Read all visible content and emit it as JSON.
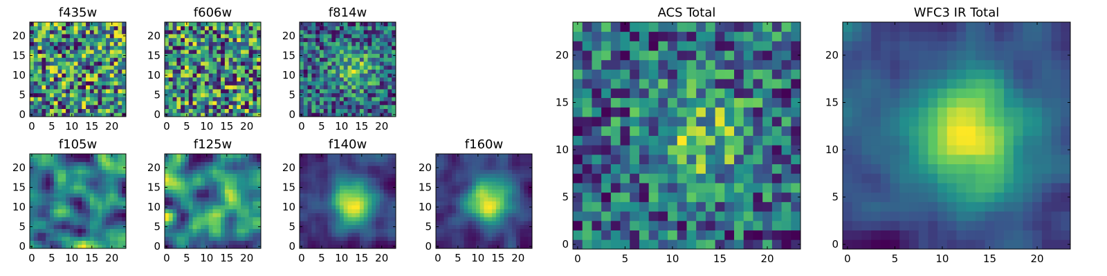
{
  "figure": {
    "colormap": [
      "#440154",
      "#3b528b",
      "#21918c",
      "#5ec962",
      "#fde725"
    ],
    "background": "#ffffff"
  },
  "chart_data": [
    {
      "id": "f435w",
      "type": "heatmap",
      "title": "f435w",
      "grid_size": 24,
      "xticks": [
        0,
        5,
        10,
        15,
        20
      ],
      "yticks": [
        0,
        5,
        10,
        15,
        20
      ],
      "xlim": [
        0,
        24
      ],
      "ylim": [
        0,
        24
      ],
      "texture": "noise",
      "seed": 11
    },
    {
      "id": "f606w",
      "type": "heatmap",
      "title": "f606w",
      "grid_size": 24,
      "xticks": [
        0,
        5,
        10,
        15,
        20
      ],
      "yticks": [
        0,
        5,
        10,
        15,
        20
      ],
      "xlim": [
        0,
        24
      ],
      "ylim": [
        0,
        24
      ],
      "texture": "noise",
      "seed": 23
    },
    {
      "id": "f814w",
      "type": "heatmap",
      "title": "f814w",
      "grid_size": 24,
      "xticks": [
        0,
        5,
        10,
        15,
        20
      ],
      "yticks": [
        0,
        5,
        10,
        15,
        20
      ],
      "xlim": [
        0,
        24
      ],
      "ylim": [
        0,
        24
      ],
      "texture": "noise-peak",
      "seed": 37
    },
    {
      "id": "f105w",
      "type": "heatmap",
      "title": "f105w",
      "grid_size": 24,
      "xticks": [
        0,
        5,
        10,
        15,
        20
      ],
      "yticks": [
        0,
        5,
        10,
        15,
        20
      ],
      "xlim": [
        0,
        24
      ],
      "ylim": [
        0,
        24
      ],
      "texture": "smooth",
      "seed": 41
    },
    {
      "id": "f125w",
      "type": "heatmap",
      "title": "f125w",
      "grid_size": 24,
      "xticks": [
        0,
        5,
        10,
        15,
        20
      ],
      "yticks": [
        0,
        5,
        10,
        15,
        20
      ],
      "xlim": [
        0,
        24
      ],
      "ylim": [
        0,
        24
      ],
      "texture": "smooth",
      "seed": 53
    },
    {
      "id": "f140w",
      "type": "heatmap",
      "title": "f140w",
      "grid_size": 24,
      "xticks": [
        0,
        5,
        10,
        15,
        20
      ],
      "yticks": [
        0,
        5,
        10,
        15,
        20
      ],
      "xlim": [
        0,
        24
      ],
      "ylim": [
        0,
        24
      ],
      "texture": "smooth-peak",
      "seed": 67
    },
    {
      "id": "f160w",
      "type": "heatmap",
      "title": "f160w",
      "grid_size": 24,
      "xticks": [
        0,
        5,
        10,
        15,
        20
      ],
      "yticks": [
        0,
        5,
        10,
        15,
        20
      ],
      "xlim": [
        0,
        24
      ],
      "ylim": [
        0,
        24
      ],
      "texture": "smooth-peak",
      "seed": 79
    },
    {
      "id": "acs-total",
      "type": "heatmap",
      "title": "ACS Total",
      "grid_size": 24,
      "xticks": [
        0,
        5,
        10,
        15,
        20
      ],
      "yticks": [
        0,
        5,
        10,
        15,
        20
      ],
      "xlim": [
        0,
        24
      ],
      "ylim": [
        0,
        24
      ],
      "texture": "noise-peak",
      "seed": 83
    },
    {
      "id": "wfc3-ir-total",
      "type": "heatmap",
      "title": "WFC3 IR Total",
      "grid_size": 24,
      "xticks": [
        0,
        5,
        10,
        15,
        20
      ],
      "yticks": [
        0,
        5,
        10,
        15,
        20
      ],
      "xlim": [
        0,
        24
      ],
      "ylim": [
        0,
        24
      ],
      "texture": "smooth-peak",
      "seed": 97
    }
  ]
}
